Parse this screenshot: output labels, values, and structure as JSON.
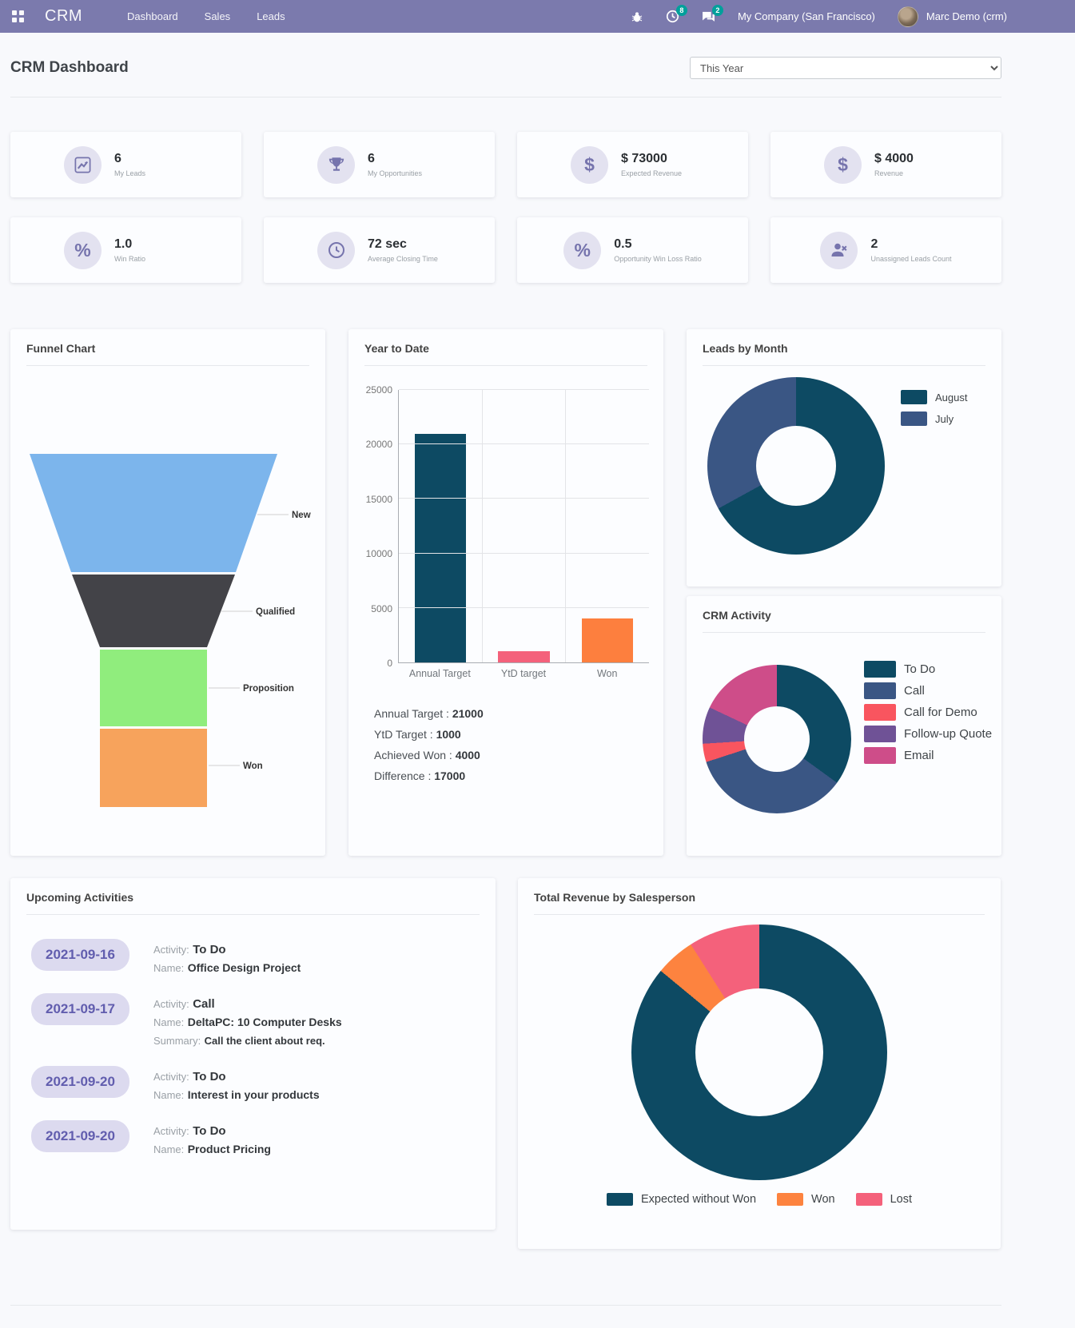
{
  "navbar": {
    "brand": "CRM",
    "menu": [
      "Dashboard",
      "Sales",
      "Leads"
    ],
    "activities_badge": "8",
    "messages_badge": "2",
    "company": "My Company (San Francisco)",
    "user": "Marc Demo (crm)"
  },
  "header": {
    "title": "CRM Dashboard",
    "period_filter": "This Year"
  },
  "kpis": [
    {
      "icon": "line-chart-icon",
      "value": "6",
      "label": "My Leads"
    },
    {
      "icon": "trophy-icon",
      "value": "6",
      "label": "My Opportunities"
    },
    {
      "icon": "dollar-icon",
      "value": "$ 73000",
      "label": "Expected Revenue"
    },
    {
      "icon": "dollar-icon",
      "value": "$ 4000",
      "label": "Revenue"
    },
    {
      "icon": "percent-icon",
      "value": "1.0",
      "label": "Win Ratio"
    },
    {
      "icon": "clock-icon",
      "value": "72 sec",
      "label": "Average Closing Time"
    },
    {
      "icon": "percent-icon",
      "value": "0.5",
      "label": "Opportunity Win Loss Ratio"
    },
    {
      "icon": "user-x-icon",
      "value": "2",
      "label": "Unassigned Leads Count"
    }
  ],
  "chart_data": [
    {
      "id": "funnel",
      "type": "funnel",
      "title": "Funnel Chart",
      "categories": [
        "New",
        "Qualified",
        "Proposition",
        "Won"
      ],
      "values": [
        34,
        21,
        22,
        23
      ],
      "colors": [
        "#7cb5ec",
        "#434348",
        "#90ed7d",
        "#f7a35c"
      ]
    },
    {
      "id": "ytd",
      "type": "bar",
      "title": "Year to Date",
      "categories": [
        "Annual Target",
        "YtD target",
        "Won"
      ],
      "values": [
        21000,
        1000,
        4000
      ],
      "colors": [
        "#0d4a63",
        "#f4617b",
        "#fd7f3e"
      ],
      "ylim": [
        0,
        25000
      ],
      "ytick_step": 5000,
      "grid": true
    },
    {
      "id": "leads_by_month",
      "type": "pie",
      "title": "Leads by Month",
      "labels": [
        "August",
        "July"
      ],
      "values": [
        67,
        33
      ],
      "colors": [
        "#0d4a63",
        "#3a5684"
      ],
      "legend_position": "right"
    },
    {
      "id": "crm_activity",
      "type": "pie",
      "title": "CRM Activity",
      "labels": [
        "To Do",
        "Call",
        "Call for Demo",
        "Follow-up Quote",
        "Email"
      ],
      "values": [
        35,
        35,
        4,
        8,
        18
      ],
      "colors": [
        "#0d4a63",
        "#3a5684",
        "#f9555f",
        "#6f5296",
        "#ce4d89"
      ],
      "legend_position": "right"
    },
    {
      "id": "revenue_by_salesperson",
      "type": "pie",
      "title": "Total Revenue by Salesperson",
      "labels": [
        "Expected without Won",
        "Won",
        "Lost"
      ],
      "values": [
        86,
        5,
        9
      ],
      "colors": [
        "#0d4a63",
        "#fd833f",
        "#f4617b"
      ],
      "legend_position": "bottom"
    }
  ],
  "ytd_summary": [
    {
      "label": "Annual Target :",
      "value": "21000"
    },
    {
      "label": "YtD Target :",
      "value": "1000"
    },
    {
      "label": "Achieved Won :",
      "value": "4000"
    },
    {
      "label": "Difference :",
      "value": "17000"
    }
  ],
  "upcoming": {
    "title": "Upcoming Activities",
    "labels": {
      "activity": "Activity:",
      "name": "Name:",
      "summary": "Summary:"
    },
    "items": [
      {
        "date": "2021-09-16",
        "activity": "To Do",
        "name": "Office Design Project"
      },
      {
        "date": "2021-09-17",
        "activity": "Call",
        "name": "DeltaPC: 10 Computer Desks",
        "summary": "Call the client about req."
      },
      {
        "date": "2021-09-20",
        "activity": "To Do",
        "name": "Interest in your products"
      },
      {
        "date": "2021-09-20",
        "activity": "To Do",
        "name": "Product Pricing"
      }
    ]
  }
}
